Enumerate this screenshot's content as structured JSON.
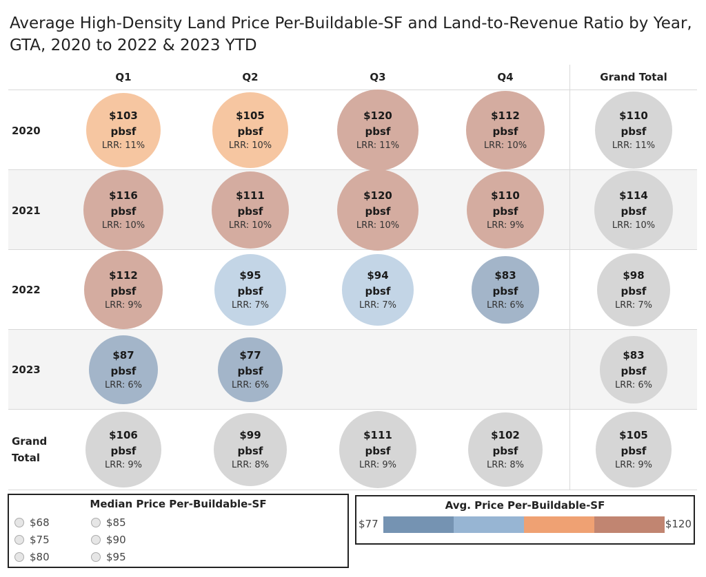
{
  "title": "Average High-Density Land Price Per-Buildable-SF and Land-to-Revenue Ratio by Year, GTA, 2020 to 2022 & 2023 YTD",
  "columns": [
    "Q1",
    "Q2",
    "Q3",
    "Q4",
    "Grand Total"
  ],
  "rows": [
    "2020",
    "2021",
    "2022",
    "2023",
    "Grand\nTotal"
  ],
  "colors": {
    "dark_blue": "#a3b5c9",
    "light_blue": "#c3d5e6",
    "peach": "#f6c6a1",
    "rose": "#d4aca0",
    "grey": "#d6d6d6"
  },
  "chart_data": {
    "type": "table",
    "unit_label": "pbsf",
    "lrr_prefix": "LRR: ",
    "cells": [
      [
        {
          "price": "$103",
          "lrr": "11%",
          "value": 103,
          "color": "peach"
        },
        {
          "price": "$105",
          "lrr": "10%",
          "value": 105,
          "color": "peach"
        },
        {
          "price": "$120",
          "lrr": "11%",
          "value": 120,
          "color": "rose"
        },
        {
          "price": "$112",
          "lrr": "10%",
          "value": 112,
          "color": "rose"
        },
        {
          "price": "$110",
          "lrr": "11%",
          "value": 110,
          "color": "grey"
        }
      ],
      [
        {
          "price": "$116",
          "lrr": "10%",
          "value": 116,
          "color": "rose"
        },
        {
          "price": "$111",
          "lrr": "10%",
          "value": 111,
          "color": "rose"
        },
        {
          "price": "$120",
          "lrr": "10%",
          "value": 120,
          "color": "rose"
        },
        {
          "price": "$110",
          "lrr": "9%",
          "value": 110,
          "color": "rose"
        },
        {
          "price": "$114",
          "lrr": "10%",
          "value": 114,
          "color": "grey"
        }
      ],
      [
        {
          "price": "$112",
          "lrr": "9%",
          "value": 112,
          "color": "rose"
        },
        {
          "price": "$95",
          "lrr": "7%",
          "value": 95,
          "color": "light_blue"
        },
        {
          "price": "$94",
          "lrr": "7%",
          "value": 94,
          "color": "light_blue"
        },
        {
          "price": "$83",
          "lrr": "6%",
          "value": 83,
          "color": "dark_blue"
        },
        {
          "price": "$98",
          "lrr": "7%",
          "value": 98,
          "color": "grey"
        }
      ],
      [
        {
          "price": "$87",
          "lrr": "6%",
          "value": 87,
          "color": "dark_blue"
        },
        {
          "price": "$77",
          "lrr": "6%",
          "value": 77,
          "color": "dark_blue"
        },
        null,
        null,
        {
          "price": "$83",
          "lrr": "6%",
          "value": 83,
          "color": "grey"
        }
      ],
      [
        {
          "price": "$106",
          "lrr": "9%",
          "value": 106,
          "color": "grey"
        },
        {
          "price": "$99",
          "lrr": "8%",
          "value": 99,
          "color": "grey"
        },
        {
          "price": "$111",
          "lrr": "9%",
          "value": 111,
          "color": "grey"
        },
        {
          "price": "$102",
          "lrr": "8%",
          "value": 102,
          "color": "grey"
        },
        {
          "price": "$105",
          "lrr": "9%",
          "value": 105,
          "color": "grey"
        }
      ]
    ]
  },
  "size_legend": {
    "title": "Median Price Per-Buildable-SF",
    "items": [
      "$68",
      "$75",
      "$80",
      "$85",
      "$90",
      "$95"
    ]
  },
  "color_legend": {
    "title": "Avg. Price Per-Buildable-SF",
    "min_label": "$77",
    "max_label": "$120",
    "segments": [
      "#7593b2",
      "#97b5d3",
      "#efa173",
      "#c18571"
    ]
  }
}
